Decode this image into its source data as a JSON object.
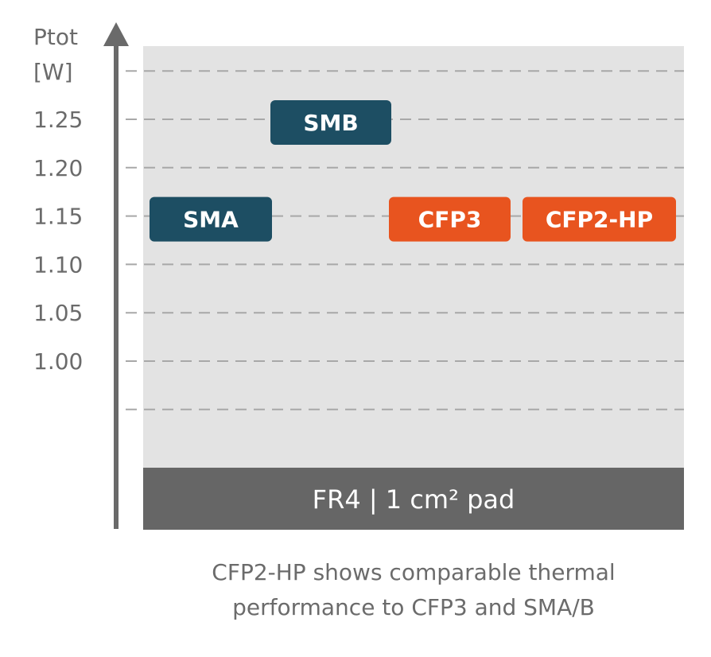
{
  "chart_data": {
    "type": "scatter",
    "ylabel": "Ptot",
    "ylabel_unit": "[W]",
    "yticks": [
      "1.25",
      "1.20",
      "1.15",
      "1.10",
      "1.05",
      "1.00"
    ],
    "ylim": [
      0.95,
      1.3
    ],
    "grid": true,
    "points": [
      {
        "label": "SMB",
        "value": 1.25,
        "color": "#1d4e63"
      },
      {
        "label": "SMA",
        "value": 1.15,
        "color": "#1d4e63"
      },
      {
        "label": "CFP3",
        "value": 1.15,
        "color": "#e8541f"
      },
      {
        "label": "CFP2-HP",
        "value": 1.15,
        "color": "#e8541f"
      }
    ],
    "footer": "FR4 | 1 cm² pad",
    "caption_lines": [
      "CFP2-HP shows comparable thermal",
      "performance to CFP3 and SMA/B"
    ]
  }
}
